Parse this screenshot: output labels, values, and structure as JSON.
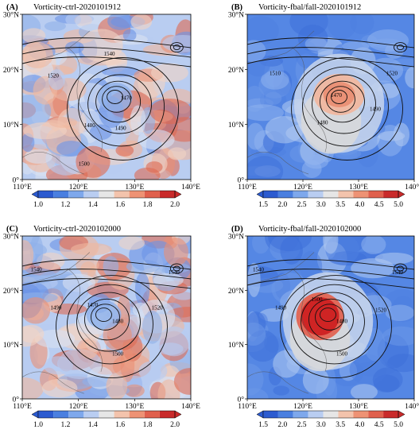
{
  "figure": {
    "panels": [
      {
        "tag": "(A)",
        "title": "Vorticity-ctrl-2020101912",
        "colorbar": {
          "ticks": [
            "1.0",
            "1.2",
            "1.4",
            "1.6",
            "1.8",
            "2.0"
          ],
          "range": [
            1.0,
            2.0
          ],
          "colors": [
            "#2c5bd0",
            "#4a7fe0",
            "#7ea8ec",
            "#b9cdf1",
            "#e6e6e6",
            "#f3c3ac",
            "#ee9274",
            "#e0604d",
            "#c92a2a"
          ]
        },
        "field_palette": "mixed",
        "center": [
          126.5,
          15.0
        ],
        "contour_labels": [
          {
            "text": "1540",
            "lon": 125.5,
            "lat": 22.5
          },
          {
            "text": "1520",
            "lon": 115.5,
            "lat": 18.5
          },
          {
            "text": "1470",
            "lon": 128.5,
            "lat": 14.5
          },
          {
            "text": "1480",
            "lon": 122.0,
            "lat": 9.5
          },
          {
            "text": "1490",
            "lon": 127.5,
            "lat": 9.0
          },
          {
            "text": "1500",
            "lon": 121.0,
            "lat": 2.5
          }
        ]
      },
      {
        "tag": "(B)",
        "title": "Vorticity-fbal/fall-2020101912",
        "colorbar": {
          "ticks": [
            "1.5",
            "2.0",
            "2.5",
            "3.0",
            "3.5",
            "4.0",
            "4.5",
            "5.0"
          ],
          "range": [
            1.5,
            5.0
          ],
          "colors": [
            "#2c5bd0",
            "#4a7fe0",
            "#7ea8ec",
            "#b9cdf1",
            "#e6e6e6",
            "#f3c3ac",
            "#ee9274",
            "#e0604d",
            "#c92a2a"
          ]
        },
        "field_palette": "blue",
        "center": [
          126.5,
          15.0
        ],
        "contour_labels": [
          {
            "text": "1510",
            "lon": 115.0,
            "lat": 19.0
          },
          {
            "text": "1520",
            "lon": 136.0,
            "lat": 19.0
          },
          {
            "text": "1470",
            "lon": 126.0,
            "lat": 15.0
          },
          {
            "text": "1480",
            "lon": 123.5,
            "lat": 10.0
          },
          {
            "text": "1490",
            "lon": 133.0,
            "lat": 12.5
          }
        ]
      },
      {
        "tag": "(C)",
        "title": "Vorticity-ctrl-2020102000",
        "colorbar": {
          "ticks": [
            "1.0",
            "1.2",
            "1.4",
            "1.6",
            "1.8",
            "2.0"
          ],
          "range": [
            1.0,
            2.0
          ],
          "colors": [
            "#2c5bd0",
            "#4a7fe0",
            "#7ea8ec",
            "#b9cdf1",
            "#e6e6e6",
            "#f3c3ac",
            "#ee9274",
            "#e0604d",
            "#c92a2a"
          ]
        },
        "field_palette": "mixed",
        "center": [
          124.5,
          15.5
        ],
        "contour_labels": [
          {
            "text": "1540",
            "lon": 112.5,
            "lat": 23.5
          },
          {
            "text": "1540",
            "lon": 137.0,
            "lat": 23.0
          },
          {
            "text": "1490",
            "lon": 116.0,
            "lat": 16.5
          },
          {
            "text": "1470",
            "lon": 122.5,
            "lat": 17.0
          },
          {
            "text": "1480",
            "lon": 127.0,
            "lat": 14.0
          },
          {
            "text": "1520",
            "lon": 134.0,
            "lat": 16.5
          },
          {
            "text": "1500",
            "lon": 127.0,
            "lat": 8.0
          }
        ]
      },
      {
        "tag": "(D)",
        "title": "Vorticity-fbal/fall-2020102000",
        "colorbar": {
          "ticks": [
            "1.5",
            "2.0",
            "2.5",
            "3.0",
            "3.5",
            "4.0",
            "4.5",
            "5.0"
          ],
          "range": [
            1.5,
            5.0
          ],
          "colors": [
            "#2c5bd0",
            "#4a7fe0",
            "#7ea8ec",
            "#b9cdf1",
            "#e6e6e6",
            "#f3c3ac",
            "#ee9274",
            "#e0604d",
            "#c92a2a"
          ]
        },
        "field_palette": "blue",
        "center": [
          124.5,
          15.5
        ],
        "contour_labels": [
          {
            "text": "1540",
            "lon": 112.0,
            "lat": 23.5
          },
          {
            "text": "1540",
            "lon": 137.0,
            "lat": 23.0
          },
          {
            "text": "1490",
            "lon": 116.0,
            "lat": 16.5
          },
          {
            "text": "1500",
            "lon": 122.5,
            "lat": 18.0
          },
          {
            "text": "1480",
            "lon": 127.0,
            "lat": 14.0
          },
          {
            "text": "1520",
            "lon": 134.0,
            "lat": 16.0
          },
          {
            "text": "1500",
            "lon": 127.0,
            "lat": 8.0
          }
        ]
      }
    ],
    "axes": {
      "x_ticks": [
        "110°E",
        "120°E",
        "130°E",
        "140°E"
      ],
      "y_ticks": [
        "0°",
        "10°N",
        "20°N",
        "30°N"
      ],
      "lon_range": [
        110,
        140
      ],
      "lat_range": [
        0,
        30
      ]
    }
  },
  "chart_data": {
    "type": "heatmap",
    "panels": [
      {
        "title": "Vorticity-ctrl-2020101912",
        "label": "(A)",
        "colorbar_range": [
          1.0,
          2.0
        ],
        "contour_levels": [
          1470,
          1480,
          1490,
          1500,
          1510,
          1520,
          1530,
          1540
        ],
        "low_center": [
          126.5,
          15.0
        ]
      },
      {
        "title": "Vorticity-fbal/fall-2020101912",
        "label": "(B)",
        "colorbar_range": [
          1.5,
          5.0
        ],
        "contour_levels": [
          1470,
          1480,
          1490,
          1500,
          1510,
          1520,
          1530,
          1540
        ],
        "low_center": [
          126.5,
          15.0
        ]
      },
      {
        "title": "Vorticity-ctrl-2020102000",
        "label": "(C)",
        "colorbar_range": [
          1.0,
          2.0
        ],
        "contour_levels": [
          1470,
          1480,
          1490,
          1500,
          1510,
          1520,
          1530,
          1540
        ],
        "low_center": [
          124.5,
          15.5
        ]
      },
      {
        "title": "Vorticity-fbal/fall-2020102000",
        "label": "(D)",
        "colorbar_range": [
          1.5,
          5.0
        ],
        "contour_levels": [
          1470,
          1480,
          1490,
          1500,
          1510,
          1520,
          1530,
          1540
        ],
        "low_center": [
          124.5,
          15.5
        ]
      }
    ],
    "xlim": [
      110,
      140
    ],
    "ylim": [
      0,
      30
    ]
  }
}
